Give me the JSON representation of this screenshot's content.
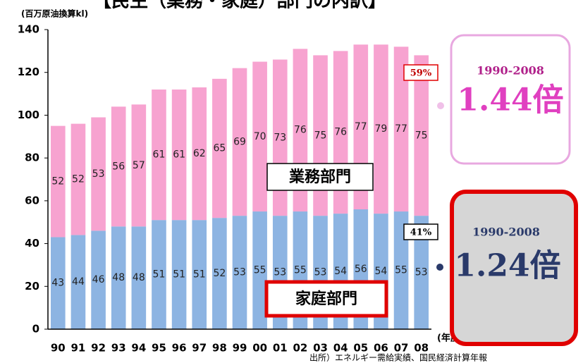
{
  "chart_data": {
    "type": "bar",
    "stacked": true,
    "title": "【民生（業務・家庭）部門の内訳】",
    "y_label": "(百万原油換算kl)",
    "x_label": "(年度)",
    "source": "出所）エネルギー需給実績、国民経済計算年報",
    "categories": [
      "90",
      "91",
      "92",
      "93",
      "94",
      "95",
      "96",
      "97",
      "98",
      "99",
      "00",
      "01",
      "02",
      "03",
      "04",
      "05",
      "06",
      "07",
      "08"
    ],
    "series": [
      {
        "name": "家庭部門",
        "color": "#8db4e2",
        "values": [
          43,
          44,
          46,
          48,
          48,
          51,
          51,
          51,
          52,
          53,
          55,
          53,
          55,
          53,
          54,
          56,
          54,
          55,
          53
        ]
      },
      {
        "name": "業務部門",
        "color": "#f7a3d0",
        "values": [
          52,
          52,
          53,
          56,
          57,
          61,
          61,
          62,
          65,
          69,
          70,
          73,
          76,
          75,
          76,
          77,
          79,
          77,
          75
        ]
      }
    ],
    "ylim": [
      0,
      140
    ],
    "yticks": [
      0,
      20,
      40,
      60,
      80,
      100,
      120,
      140
    ],
    "annotations": {
      "business_share": "59%",
      "household_share": "41%",
      "business_period": "1990-2008",
      "business_ratio": "1.44倍",
      "household_period": "1990-2008",
      "household_ratio": "1.24倍"
    }
  }
}
